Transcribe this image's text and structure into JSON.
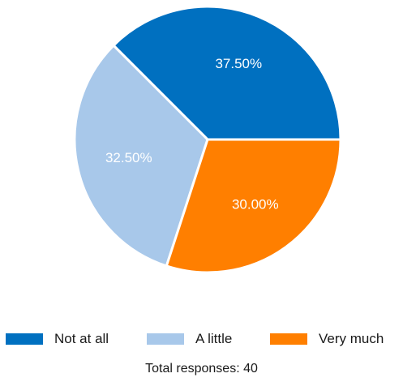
{
  "chart_data": {
    "type": "pie",
    "categories": [
      "Not at all",
      "A little",
      "Very much"
    ],
    "values": [
      37.5,
      32.5,
      30.0
    ],
    "data_labels": [
      "37.50%",
      "32.50%",
      "30.00%"
    ],
    "colors": [
      "#0070c0",
      "#a8c8ea",
      "#ff7f00"
    ],
    "legend_position": "bottom",
    "footer": "Total responses: 40"
  }
}
